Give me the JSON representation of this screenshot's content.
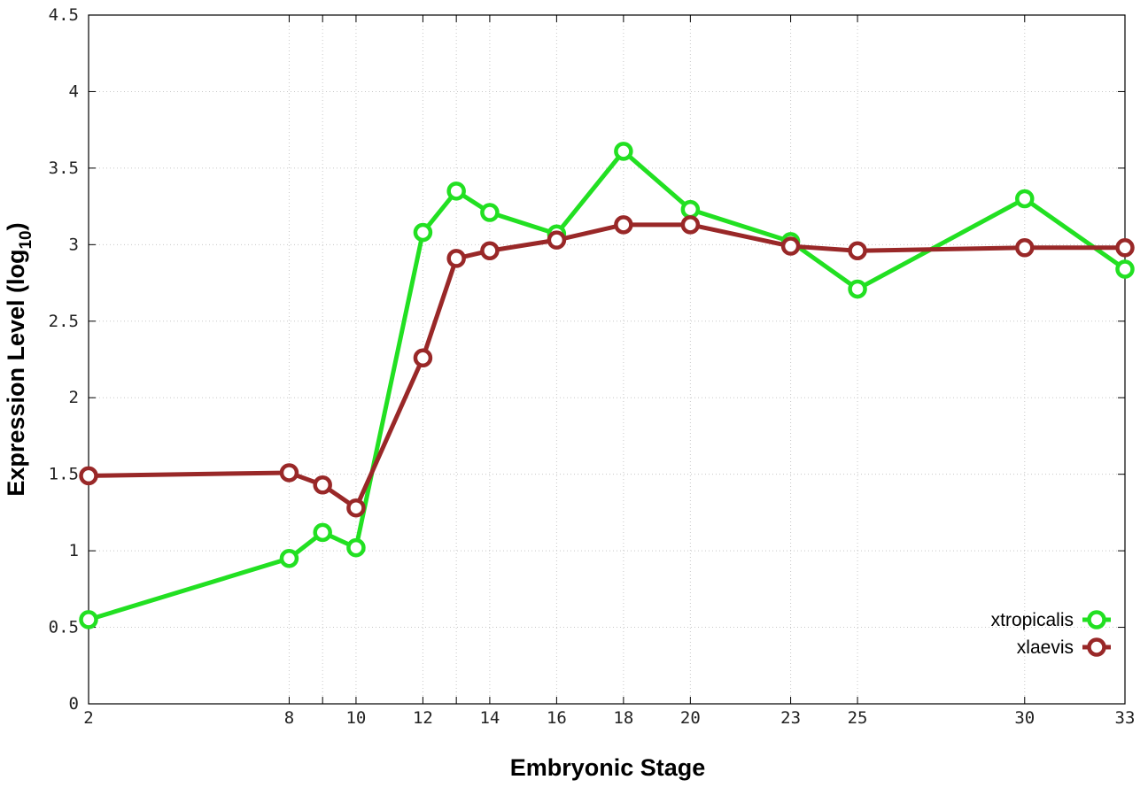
{
  "chart_data": {
    "type": "line",
    "title": "",
    "xlabel": "Embryonic Stage",
    "ylabel_main": "Expression Level (log",
    "ylabel_sub": "10",
    "ylabel_end": ")",
    "x_categories": [
      "2",
      "8",
      "9",
      "10",
      "12",
      "13",
      "14",
      "16",
      "18",
      "20",
      "23",
      "25",
      "30",
      "33"
    ],
    "x_tick_labels": [
      "2",
      "8",
      "10",
      "12",
      "14",
      "16",
      "18",
      "20",
      "23",
      "25",
      "30",
      "33"
    ],
    "ylim": [
      0,
      4.5
    ],
    "y_ticks": [
      0,
      0.5,
      1,
      1.5,
      2,
      2.5,
      3,
      3.5,
      4,
      4.5
    ],
    "y_tick_labels": [
      "0",
      "0.5",
      "1",
      "1.5",
      "2",
      "2.5",
      "3",
      "3.5",
      "4",
      "4.5"
    ],
    "grid": true,
    "legend_position": "bottom-right",
    "series": [
      {
        "name": "xtropicalis",
        "color": "#22e022",
        "values": [
          0.55,
          0.95,
          1.12,
          1.02,
          3.08,
          3.35,
          3.21,
          3.07,
          3.61,
          3.23,
          3.02,
          2.71,
          3.3,
          2.84
        ]
      },
      {
        "name": "xlaevis",
        "color": "#992828",
        "values": [
          1.49,
          1.51,
          1.43,
          1.28,
          2.26,
          2.91,
          2.96,
          3.03,
          3.13,
          3.13,
          2.99,
          2.96,
          2.98,
          2.98
        ]
      }
    ]
  }
}
